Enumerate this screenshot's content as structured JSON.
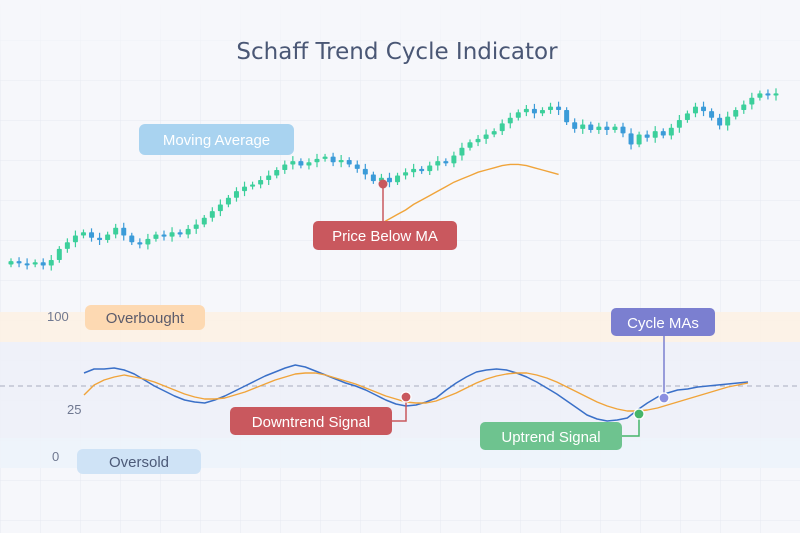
{
  "chart_data": {
    "title": "Schaff Trend Cycle Indicator",
    "price_panel": {
      "type": "candlestick",
      "candles": [
        {
          "o": 104,
          "c": 107
        },
        {
          "o": 107,
          "c": 105
        },
        {
          "o": 105,
          "c": 104
        },
        {
          "o": 104,
          "c": 106
        },
        {
          "o": 106,
          "c": 103
        },
        {
          "o": 103,
          "c": 108
        },
        {
          "o": 108,
          "c": 118
        },
        {
          "o": 118,
          "c": 124
        },
        {
          "o": 124,
          "c": 130
        },
        {
          "o": 130,
          "c": 133
        },
        {
          "o": 133,
          "c": 128
        },
        {
          "o": 128,
          "c": 126
        },
        {
          "o": 126,
          "c": 131
        },
        {
          "o": 131,
          "c": 137
        },
        {
          "o": 137,
          "c": 130
        },
        {
          "o": 130,
          "c": 124
        },
        {
          "o": 124,
          "c": 122
        },
        {
          "o": 122,
          "c": 127
        },
        {
          "o": 127,
          "c": 131
        },
        {
          "o": 131,
          "c": 129
        },
        {
          "o": 129,
          "c": 133
        },
        {
          "o": 133,
          "c": 131
        },
        {
          "o": 131,
          "c": 136
        },
        {
          "o": 136,
          "c": 140
        },
        {
          "o": 140,
          "c": 146
        },
        {
          "o": 146,
          "c": 152
        },
        {
          "o": 152,
          "c": 158
        },
        {
          "o": 158,
          "c": 164
        },
        {
          "o": 164,
          "c": 170
        },
        {
          "o": 170,
          "c": 174
        },
        {
          "o": 174,
          "c": 176
        },
        {
          "o": 176,
          "c": 180
        },
        {
          "o": 180,
          "c": 184
        },
        {
          "o": 184,
          "c": 189
        },
        {
          "o": 189,
          "c": 194
        },
        {
          "o": 194,
          "c": 197
        },
        {
          "o": 197,
          "c": 193
        },
        {
          "o": 193,
          "c": 196
        },
        {
          "o": 196,
          "c": 199
        },
        {
          "o": 199,
          "c": 201
        },
        {
          "o": 201,
          "c": 196
        },
        {
          "o": 196,
          "c": 198
        },
        {
          "o": 198,
          "c": 194
        },
        {
          "o": 194,
          "c": 190
        },
        {
          "o": 190,
          "c": 185
        },
        {
          "o": 185,
          "c": 179
        },
        {
          "o": 179,
          "c": 182
        },
        {
          "o": 182,
          "c": 178
        },
        {
          "o": 178,
          "c": 184
        },
        {
          "o": 184,
          "c": 187
        },
        {
          "o": 187,
          "c": 190
        },
        {
          "o": 190,
          "c": 188
        },
        {
          "o": 188,
          "c": 193
        },
        {
          "o": 193,
          "c": 197
        },
        {
          "o": 197,
          "c": 195
        },
        {
          "o": 195,
          "c": 202
        },
        {
          "o": 202,
          "c": 209
        },
        {
          "o": 209,
          "c": 214
        },
        {
          "o": 214,
          "c": 217
        },
        {
          "o": 217,
          "c": 221
        },
        {
          "o": 221,
          "c": 224
        },
        {
          "o": 224,
          "c": 231
        },
        {
          "o": 231,
          "c": 236
        },
        {
          "o": 236,
          "c": 241
        },
        {
          "o": 241,
          "c": 244
        },
        {
          "o": 244,
          "c": 240
        },
        {
          "o": 240,
          "c": 243
        },
        {
          "o": 243,
          "c": 246
        },
        {
          "o": 246,
          "c": 243
        },
        {
          "o": 243,
          "c": 232
        },
        {
          "o": 232,
          "c": 226
        },
        {
          "o": 226,
          "c": 230
        },
        {
          "o": 230,
          "c": 225
        },
        {
          "o": 225,
          "c": 228
        },
        {
          "o": 228,
          "c": 225
        },
        {
          "o": 225,
          "c": 228
        },
        {
          "o": 228,
          "c": 222
        },
        {
          "o": 222,
          "c": 212
        },
        {
          "o": 212,
          "c": 221
        },
        {
          "o": 221,
          "c": 218
        },
        {
          "o": 218,
          "c": 224
        },
        {
          "o": 224,
          "c": 220
        },
        {
          "o": 220,
          "c": 227
        },
        {
          "o": 227,
          "c": 234
        },
        {
          "o": 234,
          "c": 240
        },
        {
          "o": 240,
          "c": 246
        },
        {
          "o": 246,
          "c": 242
        },
        {
          "o": 242,
          "c": 236
        },
        {
          "o": 236,
          "c": 229
        },
        {
          "o": 229,
          "c": 237
        },
        {
          "o": 237,
          "c": 243
        },
        {
          "o": 243,
          "c": 248
        },
        {
          "o": 248,
          "c": 254
        },
        {
          "o": 254,
          "c": 258
        },
        {
          "o": 258,
          "c": 256
        },
        {
          "o": 256,
          "c": 258
        }
      ],
      "moving_average": [
        null,
        null,
        null,
        null,
        null,
        null,
        null,
        null,
        null,
        null,
        null,
        null,
        null,
        null,
        null,
        null,
        null,
        null,
        null,
        null,
        null,
        null,
        null,
        null,
        null,
        null,
        null,
        null,
        null,
        null,
        null,
        null,
        null,
        null,
        null,
        null,
        null,
        null,
        null,
        null,
        null,
        123,
        126,
        129,
        133,
        137,
        141,
        145,
        149,
        153,
        158,
        162,
        166,
        170,
        174,
        178,
        181,
        184,
        187,
        189,
        191,
        193,
        194,
        194,
        193,
        191,
        189,
        187,
        185
      ],
      "y_range": [
        90,
        270
      ],
      "up_color": "#3ccf9b",
      "down_color": "#3b9bd8",
      "ma_color": "#f0a43a"
    },
    "indicator_panel": {
      "type": "line",
      "y_ticks": [
        "100",
        "25",
        "0"
      ],
      "bands": {
        "overbought": [
          75,
          100
        ],
        "oversold": [
          0,
          25
        ]
      },
      "dashed_level": 50,
      "series": [
        {
          "color": "#3a70c8",
          "values": [
            67,
            71,
            71,
            72,
            70,
            66,
            60,
            54,
            49,
            44,
            40,
            38,
            37,
            40,
            44,
            49,
            54,
            59,
            64,
            68,
            72,
            75,
            73,
            69,
            65,
            61,
            57,
            54,
            50,
            45,
            40,
            36,
            34,
            35,
            38,
            42,
            50,
            57,
            63,
            68,
            70,
            71,
            70,
            67,
            63,
            58,
            52,
            46,
            39,
            32,
            25,
            21,
            19,
            20,
            22,
            30,
            37,
            43,
            47,
            50,
            51,
            53,
            54,
            55,
            56,
            57,
            58
          ]
        },
        {
          "color": "#f0a43a",
          "values": [
            45,
            55,
            60,
            63,
            65,
            63,
            61,
            58,
            54,
            50,
            46,
            43,
            41,
            41,
            42,
            45,
            48,
            52,
            56,
            60,
            63,
            66,
            67,
            67,
            65,
            62,
            59,
            56,
            52,
            48,
            44,
            41,
            38,
            37,
            37,
            39,
            43,
            47,
            52,
            57,
            61,
            64,
            66,
            67,
            67,
            65,
            62,
            58,
            53,
            48,
            43,
            38,
            34,
            31,
            29,
            29,
            30,
            32,
            35,
            38,
            41,
            44,
            47,
            50,
            53,
            55,
            57
          ]
        }
      ]
    },
    "annotations": [
      {
        "id": "moving-average",
        "label": "Moving Average",
        "bg": "#a9d3f0",
        "fg": "#ffffff"
      },
      {
        "id": "price-below-ma",
        "label": "Price Below MA",
        "bg": "#c9585e",
        "fg": "#ffffff",
        "dot": "#c9585e"
      },
      {
        "id": "overbought",
        "label": "Overbought",
        "bg": "#fdd9b2",
        "fg": "#5b5b6b"
      },
      {
        "id": "oversold",
        "label": "Oversold",
        "bg": "#cfe3f6",
        "fg": "#4c5a78"
      },
      {
        "id": "downtrend-signal",
        "label": "Downtrend Signal",
        "bg": "#c9585e",
        "fg": "#ffffff",
        "dot": "#c9585e"
      },
      {
        "id": "uptrend-signal",
        "label": "Uptrend Signal",
        "bg": "#6ec38f",
        "fg": "#ffffff",
        "dot": "#45b56a"
      },
      {
        "id": "cycle-mas",
        "label": "Cycle MAs",
        "bg": "#7b7fd0",
        "fg": "#ffffff",
        "dot": "#8a8fe0"
      }
    ]
  }
}
